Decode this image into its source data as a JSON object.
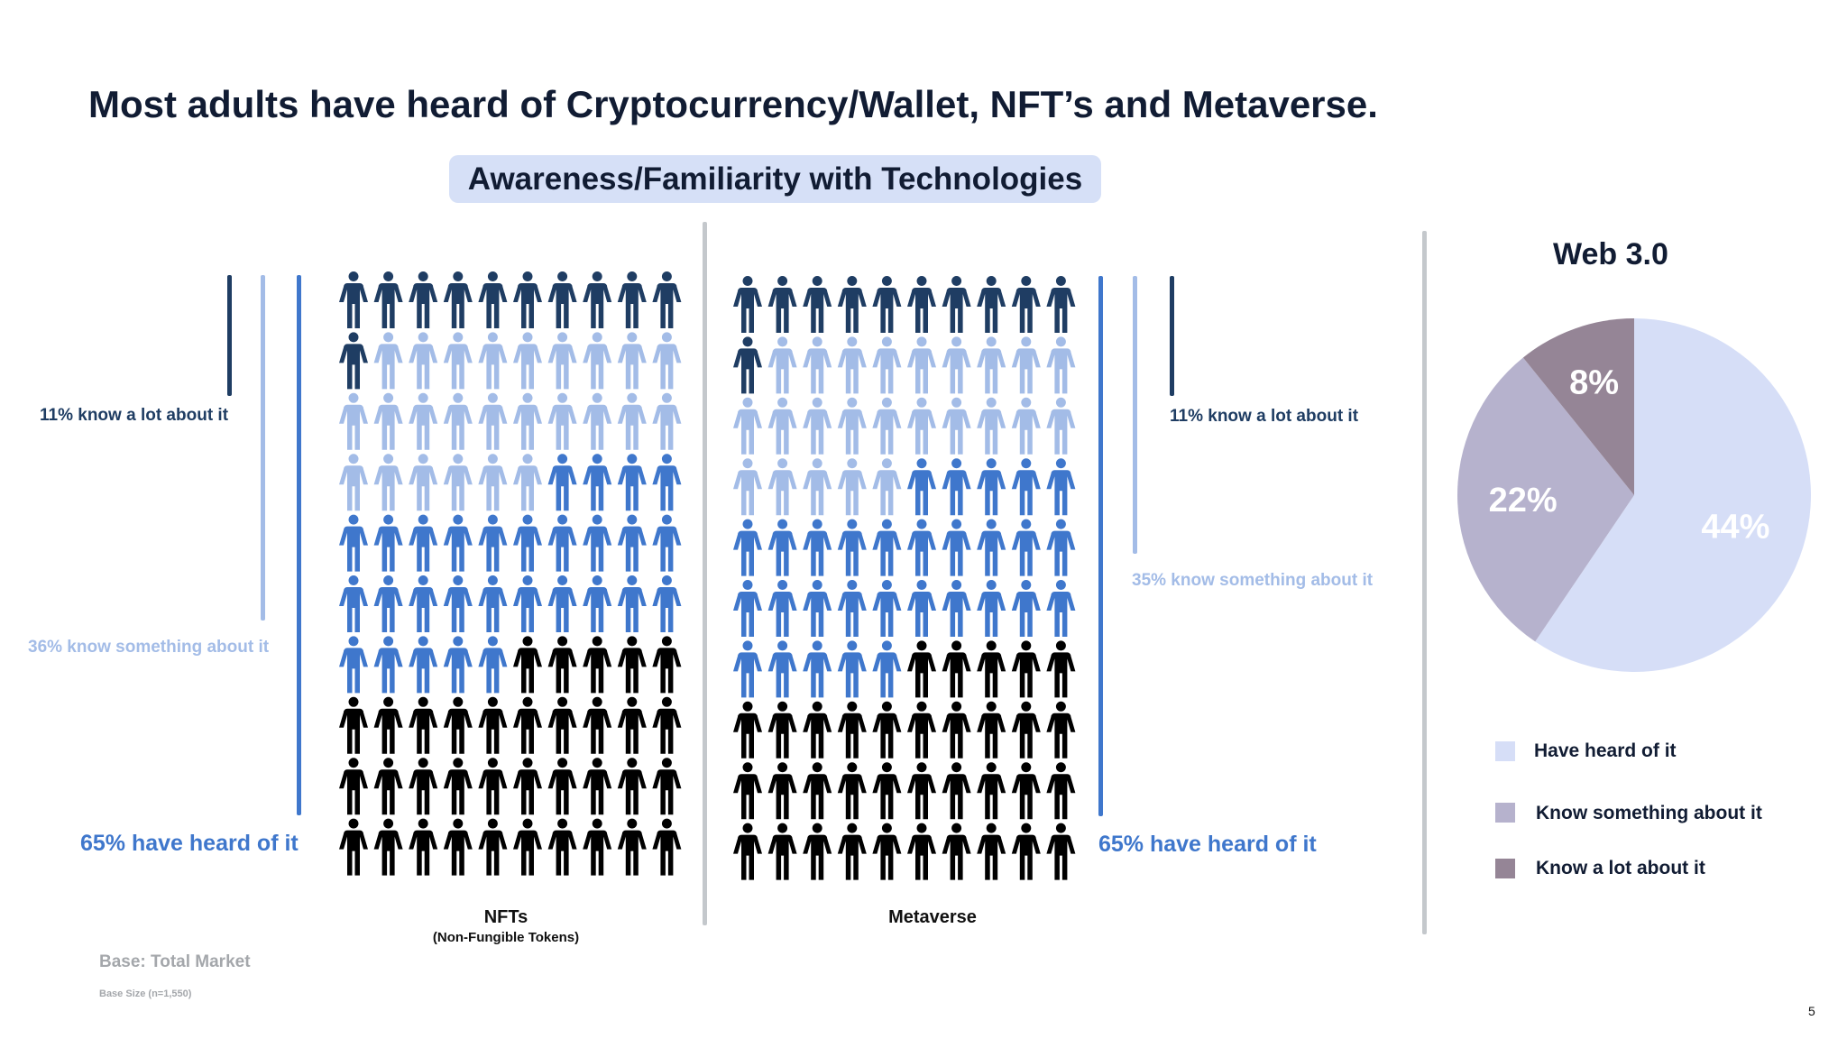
{
  "page": {
    "title": "Most adults have heard of Cryptocurrency/Wallet, NFT’s and Metaverse.",
    "section_title": "Awareness/Familiarity with Technologies",
    "base_label": "Base: Total Market",
    "base_size": "Base Size (n=1,550)",
    "page_number": "5"
  },
  "colors": {
    "know_a_lot": "#1f3d63",
    "know_something": "#a3bce7",
    "heard_of": "#3f77cc",
    "not_heard": "#000000",
    "pie_heard": "#d6def7",
    "pie_something": "#b6b2cd",
    "pie_lot": "#958596"
  },
  "chart_data": [
    {
      "type": "pictogram",
      "title": "NFTs",
      "subtitle": "(Non-Fungible Tokens)",
      "total_icons": 100,
      "values": {
        "know_a_lot": 11,
        "know_something": 25,
        "heard_of": 29,
        "not_heard": 35
      },
      "annotations": {
        "know_a_lot": "11% know a lot about it",
        "know_something": "36% know something about it",
        "heard_of": "65% have heard of it"
      }
    },
    {
      "type": "pictogram",
      "title": "Metaverse",
      "subtitle": "",
      "total_icons": 100,
      "values": {
        "know_a_lot": 11,
        "know_something": 24,
        "heard_of": 30,
        "not_heard": 35
      },
      "annotations": {
        "know_a_lot": "11% know a lot about it",
        "know_something": "35% know something about it",
        "heard_of": "65% have heard of it"
      }
    },
    {
      "type": "pie",
      "title": "Web 3.0",
      "slices": [
        {
          "label": "Have heard of it",
          "value": 44,
          "text": "44%",
          "color": "#d6def7"
        },
        {
          "label": "Know something about it",
          "value": 22,
          "text": "22%",
          "color": "#b6b2cd"
        },
        {
          "label": "Know a lot about it",
          "value": 8,
          "text": "8%",
          "color": "#958596"
        }
      ]
    }
  ]
}
